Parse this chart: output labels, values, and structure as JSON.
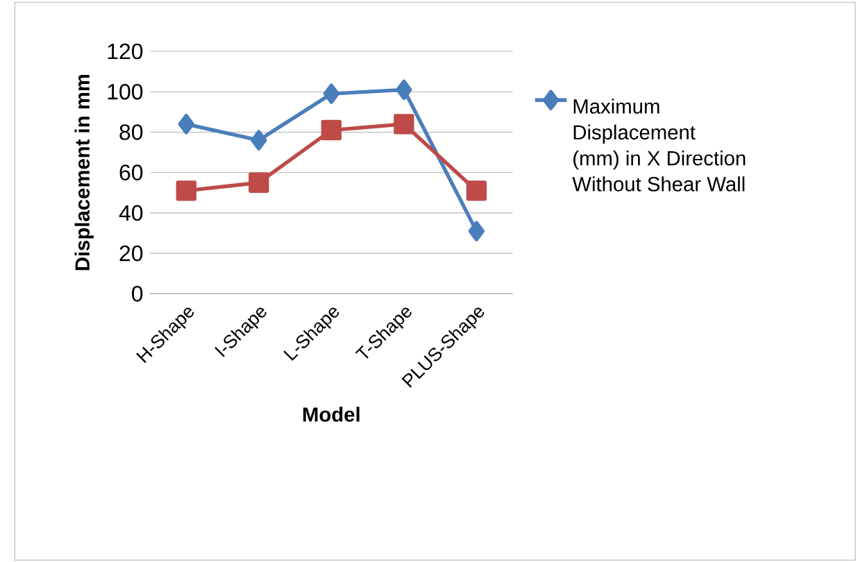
{
  "chart_data": {
    "type": "line",
    "xlabel": "Model",
    "ylabel": "Displacement in mm",
    "categories": [
      "H-Shape",
      "I-Shape",
      "L-Shape",
      "T-Shape",
      "PLUS-Shape"
    ],
    "series": [
      {
        "name": "Maximum Displacement (mm) in X Direction Without Shear Wall",
        "color": "#4a7ebb",
        "marker": "diamond",
        "values": [
          84,
          76,
          99,
          101,
          31
        ]
      },
      {
        "color": "#be4b48",
        "marker": "square",
        "values": [
          51,
          55,
          81,
          84,
          51
        ]
      }
    ],
    "ylim": [
      0,
      120
    ],
    "yticks": [
      0,
      20,
      40,
      60,
      80,
      100,
      120
    ],
    "grid": "y",
    "legend": "right"
  }
}
